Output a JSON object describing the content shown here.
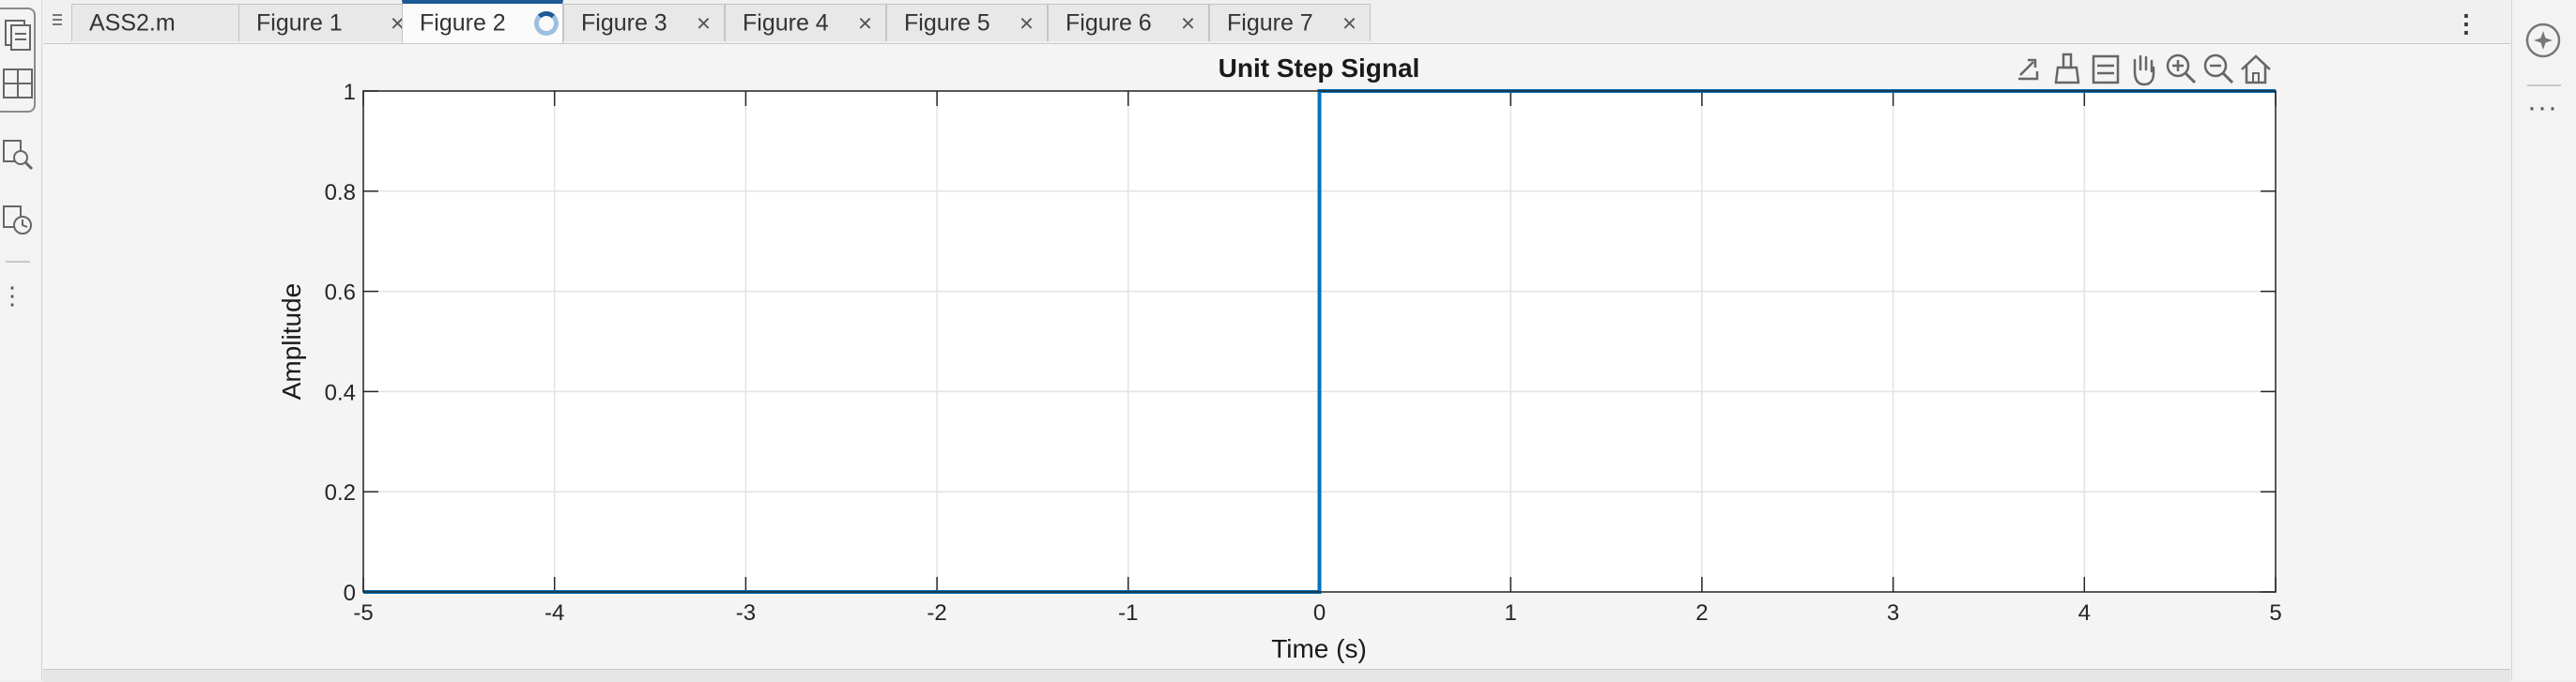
{
  "tabs": {
    "items": [
      {
        "label": "ASS2.m",
        "active": false
      },
      {
        "label": "Figure 1",
        "active": false
      },
      {
        "label": "Figure 2",
        "active": true,
        "busy": true
      },
      {
        "label": "Figure 3",
        "active": false
      },
      {
        "label": "Figure 4",
        "active": false
      },
      {
        "label": "Figure 5",
        "active": false
      },
      {
        "label": "Figure 6",
        "active": false
      },
      {
        "label": "Figure 7",
        "active": false
      }
    ],
    "close_glyph": "×"
  },
  "axes_toolbar": [
    "export-icon",
    "brush-icon",
    "data-tips-icon",
    "pan-hand-icon",
    "zoom-in-icon",
    "zoom-out-icon",
    "home-icon"
  ],
  "chart_data": {
    "type": "line",
    "title": "Unit Step Signal",
    "xlabel": "Time (s)",
    "ylabel": "Amplitude",
    "xlim": [
      -5,
      5
    ],
    "ylim": [
      0,
      1
    ],
    "x_ticks": [
      "-5",
      "-4",
      "-3",
      "-2",
      "-1",
      "0",
      "1",
      "2",
      "3",
      "4",
      "5"
    ],
    "y_ticks": [
      "0",
      "0.2",
      "0.4",
      "0.6",
      "0.8",
      "1"
    ],
    "grid": true,
    "series": [
      {
        "x": [
          -5,
          0,
          0,
          5
        ],
        "y": [
          0,
          0,
          1,
          1
        ],
        "color": "#0072bd"
      }
    ]
  },
  "colors": {
    "line": "#0072bd",
    "active_tab_accent": "#1e5a96",
    "grid": "#e3e3e3"
  }
}
